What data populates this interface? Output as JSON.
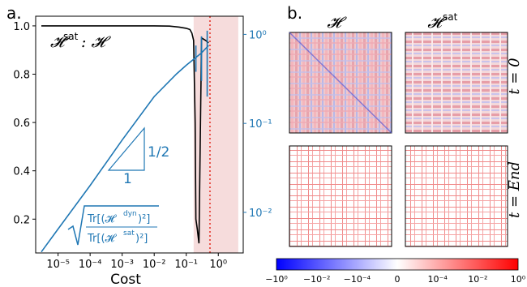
{
  "panel_a": {
    "label": "a.",
    "xlabel": "Cost",
    "annotation_main": "𝓗",
    "annotation_sup": "sat",
    "annotation_rest": " : 𝓗",
    "slope_label": "1/2",
    "slope_base_label": "1",
    "ratio_num": "Tr[(𝓗",
    "ratio_num_sup": "dyn",
    "ratio_num_end": ")²]",
    "ratio_den": "Tr[(𝓗",
    "ratio_den_sup": "sat",
    "ratio_den_end": ")²]"
  },
  "panel_b": {
    "label": "b.",
    "col_titles": [
      "𝓗",
      "𝓗"
    ],
    "col_title_sup": [
      "",
      "sat"
    ],
    "row_labels": [
      "t = 0",
      "t = End"
    ],
    "colorbar_ticks": [
      "−10⁰",
      "−10⁻²",
      "−10⁻⁴",
      "0",
      "10⁻⁴",
      "10⁻²",
      "10⁰"
    ]
  },
  "colors": {
    "black_series": "#000000",
    "blue_series": "#1f77b4",
    "shade": "#f6dcdc",
    "marker_line": "#e8564e"
  },
  "chart_data": {
    "type": "line",
    "x_scale": "log",
    "xlim": [
      2e-06,
      6
    ],
    "x_ticks": [
      "10⁻⁵",
      "10⁻⁴",
      "10⁻³",
      "10⁻²",
      "10⁻¹",
      "10⁰"
    ],
    "y_left_ticks": [
      "0.2",
      "0.4",
      "0.6",
      "0.8",
      "1.0"
    ],
    "ylim_left": [
      0.06,
      1.04
    ],
    "y_right_scale": "log",
    "y_right_ticks": [
      "10⁻²",
      "10⁻¹",
      "10⁰"
    ],
    "ylim_right": [
      0.0035,
      1.6
    ],
    "shaded_region_x": [
      0.17,
      4.2
    ],
    "vertical_marker_x": 0.55,
    "series": [
      {
        "axis": "left",
        "x": [
          3e-06,
          1e-05,
          0.0001,
          0.001,
          0.01,
          0.03,
          0.06,
          0.1,
          0.13,
          0.15,
          0.17,
          0.19,
          0.2,
          0.22,
          0.25,
          0.3,
          0.4,
          0.5
        ],
        "y": [
          1.0,
          1.0,
          1.0,
          1.0,
          1.0,
          0.999,
          0.995,
          0.99,
          0.985,
          0.97,
          0.94,
          0.6,
          0.2,
          0.16,
          0.1,
          0.95,
          0.94,
          0.93
        ]
      },
      {
        "axis": "right",
        "x": [
          3e-06,
          1e-05,
          0.0001,
          0.001,
          0.01,
          0.05,
          0.1,
          0.2,
          0.3,
          0.5
        ],
        "y": [
          0.0036,
          0.0065,
          0.02,
          0.065,
          0.2,
          0.36,
          0.45,
          0.55,
          0.62,
          0.75
        ],
        "error_bars": [
          {
            "x": 0.2,
            "low": 0.38,
            "high": 0.75
          },
          {
            "x": 0.3,
            "low": 0.3,
            "high": 0.95
          },
          {
            "x": 0.45,
            "low": 0.2,
            "high": 1.1
          }
        ]
      }
    ]
  }
}
